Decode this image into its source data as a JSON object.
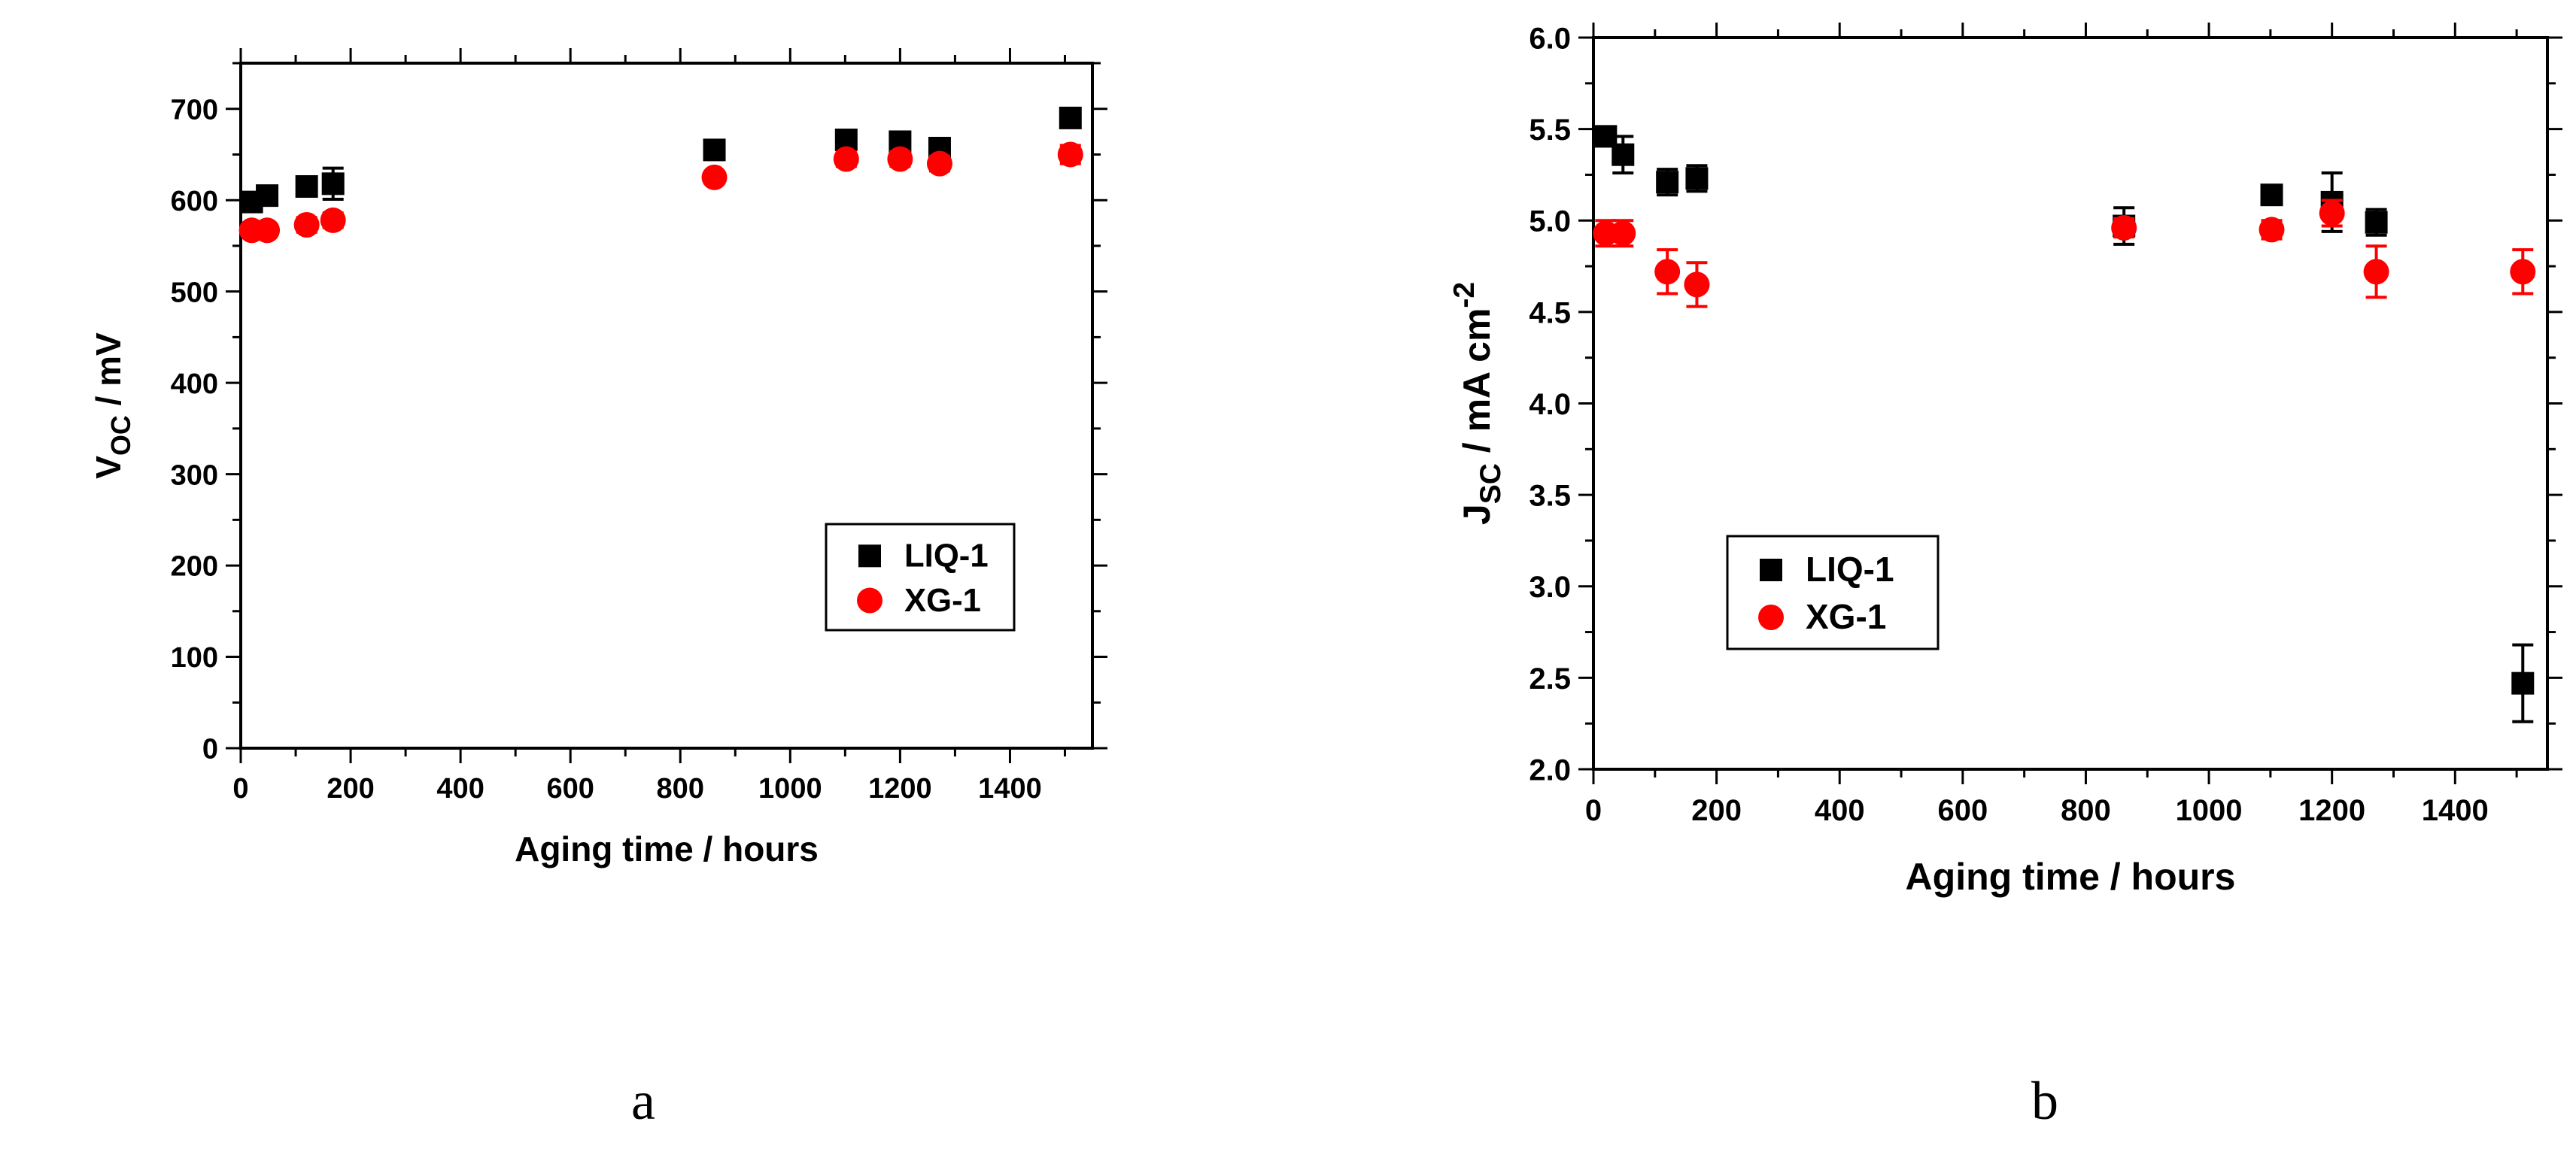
{
  "chart_data": [
    {
      "type": "scatter",
      "panel_label": "a",
      "xlabel": "Aging time / hours",
      "ylabel_main": "V",
      "ylabel_sub": "OC",
      "ylabel_rest": " / mV",
      "xlim": [
        0,
        1550
      ],
      "ylim": [
        0,
        750
      ],
      "xticks": [
        0,
        200,
        400,
        600,
        800,
        1000,
        1200,
        1400
      ],
      "yticks": [
        0,
        100,
        200,
        300,
        400,
        500,
        600,
        700
      ],
      "legend_position": "lower-right",
      "series": [
        {
          "name": "LIQ-1",
          "marker": "square",
          "color": "#000000",
          "points": [
            {
              "x": 20,
              "y": 598,
              "err": 8
            },
            {
              "x": 48,
              "y": 605,
              "err": 8
            },
            {
              "x": 120,
              "y": 615,
              "err": 8
            },
            {
              "x": 168,
              "y": 618,
              "err": 17
            },
            {
              "x": 862,
              "y": 655,
              "err": 10
            },
            {
              "x": 1102,
              "y": 666,
              "err": 10
            },
            {
              "x": 1200,
              "y": 664,
              "err": 10
            },
            {
              "x": 1272,
              "y": 657,
              "err": 10
            },
            {
              "x": 1510,
              "y": 690,
              "err": 10
            }
          ]
        },
        {
          "name": "XG-1",
          "marker": "circle",
          "color": "#ff0000",
          "points": [
            {
              "x": 20,
              "y": 567,
              "err": 5
            },
            {
              "x": 48,
              "y": 567,
              "err": 5
            },
            {
              "x": 120,
              "y": 573,
              "err": 8
            },
            {
              "x": 168,
              "y": 578,
              "err": 8
            },
            {
              "x": 862,
              "y": 625,
              "err": 5
            },
            {
              "x": 1102,
              "y": 645,
              "err": 8
            },
            {
              "x": 1200,
              "y": 645,
              "err": 8
            },
            {
              "x": 1272,
              "y": 640,
              "err": 8
            },
            {
              "x": 1510,
              "y": 650,
              "err": 10
            }
          ]
        }
      ]
    },
    {
      "type": "scatter",
      "panel_label": "b",
      "xlabel": "Aging time / hours",
      "ylabel_main": "J",
      "ylabel_sub": "SC",
      "ylabel_rest": " / mA cm",
      "ylabel_sup": "-2",
      "xlim": [
        0,
        1550
      ],
      "ylim": [
        2.0,
        6.0
      ],
      "xticks": [
        0,
        200,
        400,
        600,
        800,
        1000,
        1200,
        1400
      ],
      "yticks": [
        "2.0",
        "2.5",
        "3.0",
        "3.5",
        "4.0",
        "4.5",
        "5.0",
        "5.5",
        "6.0"
      ],
      "legend_position": "lower-left",
      "series": [
        {
          "name": "LIQ-1",
          "marker": "square",
          "color": "#000000",
          "points": [
            {
              "x": 20,
              "y": 5.46,
              "err": 0.03
            },
            {
              "x": 48,
              "y": 5.36,
              "err": 0.1
            },
            {
              "x": 120,
              "y": 5.21,
              "err": 0.07
            },
            {
              "x": 168,
              "y": 5.23,
              "err": 0.07
            },
            {
              "x": 862,
              "y": 4.97,
              "err": 0.1
            },
            {
              "x": 1102,
              "y": 5.14,
              "err": 0.05
            },
            {
              "x": 1200,
              "y": 5.1,
              "err": 0.16
            },
            {
              "x": 1272,
              "y": 4.99,
              "err": 0.07
            },
            {
              "x": 1510,
              "y": 2.47,
              "err": 0.21
            }
          ]
        },
        {
          "name": "XG-1",
          "marker": "circle",
          "color": "#ff0000",
          "points": [
            {
              "x": 20,
              "y": 4.93,
              "err": 0.07
            },
            {
              "x": 48,
              "y": 4.93,
              "err": 0.07
            },
            {
              "x": 120,
              "y": 4.72,
              "err": 0.12
            },
            {
              "x": 168,
              "y": 4.65,
              "err": 0.12
            },
            {
              "x": 862,
              "y": 4.96,
              "err": 0.05
            },
            {
              "x": 1102,
              "y": 4.95,
              "err": 0.05
            },
            {
              "x": 1200,
              "y": 5.04,
              "err": 0.07
            },
            {
              "x": 1272,
              "y": 4.72,
              "err": 0.14
            },
            {
              "x": 1510,
              "y": 4.72,
              "err": 0.12
            }
          ]
        }
      ]
    }
  ]
}
